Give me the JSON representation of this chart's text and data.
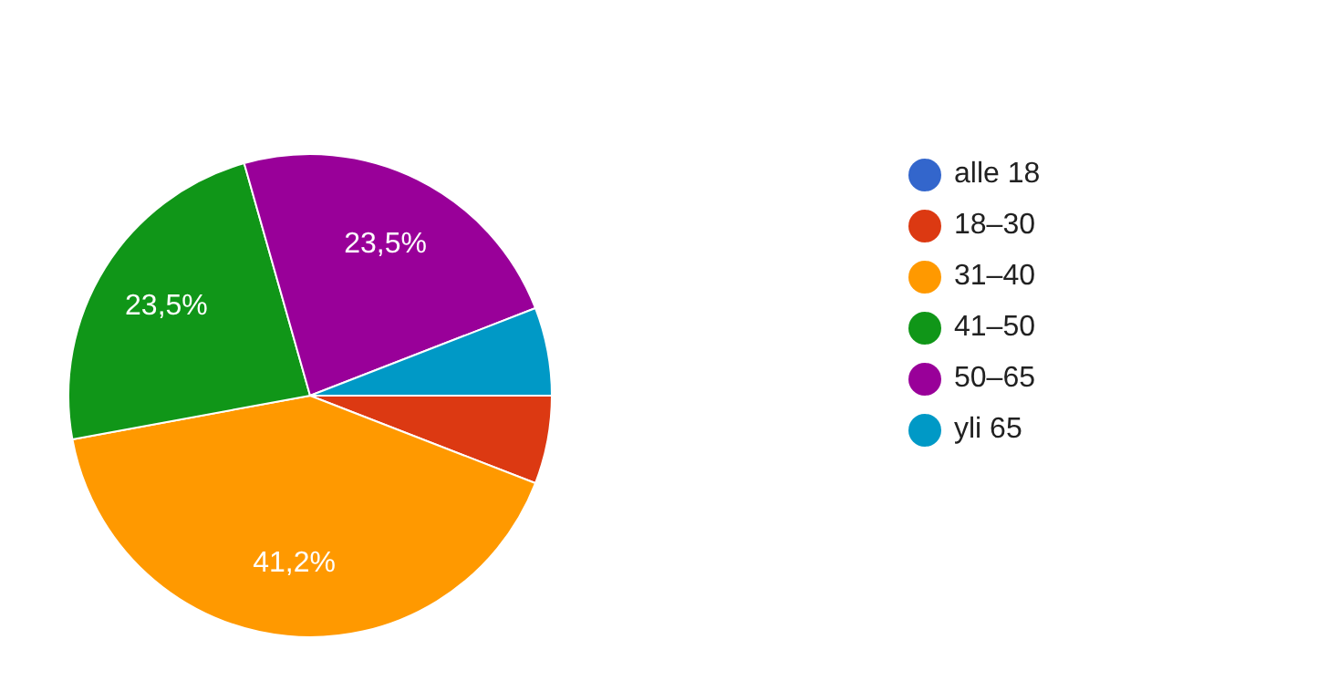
{
  "chart_data": {
    "type": "pie",
    "categories": [
      "alle 18",
      "18–30",
      "31–40",
      "41–50",
      "50–65",
      "yli 65"
    ],
    "values": [
      0,
      5.9,
      41.2,
      23.5,
      23.5,
      5.9
    ],
    "colors": [
      "#3366cc",
      "#dc3912",
      "#ff9900",
      "#109618",
      "#990099",
      "#0099c6"
    ],
    "value_labels": [
      null,
      null,
      "41,2%",
      "23,5%",
      "23,5%",
      null
    ],
    "legend": "right"
  }
}
